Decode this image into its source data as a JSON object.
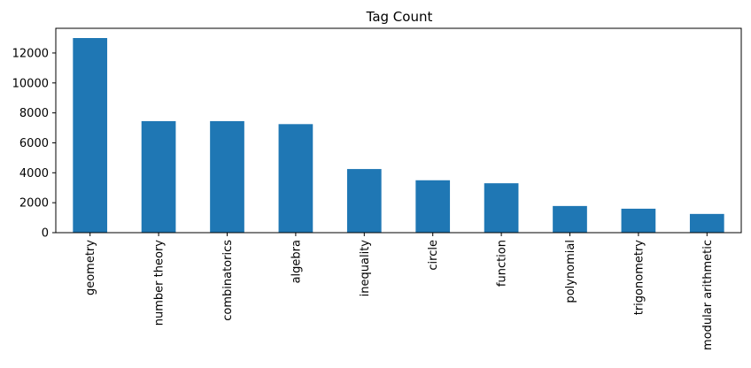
{
  "chart_data": {
    "type": "bar",
    "title": "Tag Count",
    "xlabel": "",
    "ylabel": "",
    "categories": [
      "geometry",
      "number theory",
      "combinatorics",
      "algebra",
      "inequality",
      "circle",
      "function",
      "polynomial",
      "trigonometry",
      "modular arithmetic"
    ],
    "values": [
      13000,
      7450,
      7450,
      7250,
      4250,
      3500,
      3300,
      1780,
      1600,
      1250
    ],
    "ylim": [
      0,
      13650
    ],
    "yticks": [
      0,
      2000,
      4000,
      6000,
      8000,
      10000,
      12000
    ],
    "grid": false,
    "legend": "none",
    "bar_color": "#1f77b4"
  }
}
